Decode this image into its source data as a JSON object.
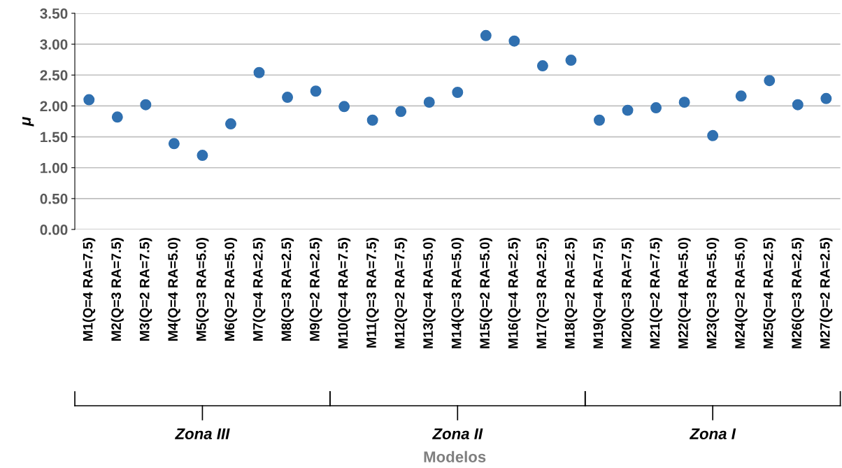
{
  "chart_data": {
    "type": "scatter",
    "ylabel": "μ",
    "categories": [
      "M1(Q=4 RA=7.5)",
      "M2(Q=3 RA=7.5)",
      "M3(Q=2 RA=7.5)",
      "M4(Q=4 RA=5.0)",
      "M5(Q=3 RA=5.0)",
      "M6(Q=2 RA=5.0)",
      "M7(Q=4 RA=2.5)",
      "M8(Q=3 RA=2.5)",
      "M9(Q=2 RA=2.5)",
      "M10(Q=4 RA=7.5)",
      "M11(Q=3 RA=7.5)",
      "M12(Q=2 RA=7.5)",
      "M13(Q=4 RA=5.0)",
      "M14(Q=3 RA=5.0)",
      "M15(Q=2 RA=5.0)",
      "M16(Q=4 RA=2.5)",
      "M17(Q=3 RA=2.5)",
      "M18(Q=2 RA=2.5)",
      "M19(Q=4 RA=7.5)",
      "M20(Q=3 RA=7.5)",
      "M21(Q=2 RA=7.5)",
      "M22(Q=4 RA=5.0)",
      "M23(Q=3 RA=5.0)",
      "M24(Q=2 RA=5.0)",
      "M25(Q=4 RA=2.5)",
      "M26(Q=3 RA=2.5)",
      "M27(Q=2 RA=2.5)"
    ],
    "values": [
      2.1,
      1.82,
      2.02,
      1.39,
      1.2,
      1.71,
      2.54,
      2.14,
      2.24,
      1.99,
      1.77,
      1.91,
      2.06,
      2.22,
      3.14,
      3.05,
      2.65,
      2.74,
      1.77,
      1.93,
      1.97,
      2.06,
      1.52,
      2.16,
      2.41,
      2.02,
      2.12
    ],
    "color": "#3070b0",
    "marker": "circle",
    "ylim": [
      0,
      3.5
    ],
    "yticks": [
      {
        "value": 0,
        "label": "0.00"
      },
      {
        "value": 0.5,
        "label": "0.50"
      },
      {
        "value": 1,
        "label": "1.00"
      },
      {
        "value": 1.5,
        "label": "1.50"
      },
      {
        "value": 2,
        "label": "2.00"
      },
      {
        "value": 2.5,
        "label": "2.50"
      },
      {
        "value": 3,
        "label": "3.00"
      },
      {
        "value": 3.5,
        "label": "3.50"
      }
    ],
    "grid": "y",
    "legend": false,
    "annotations": [
      "Zona III",
      "Zona II",
      "Zona I",
      "Modelos"
    ]
  }
}
